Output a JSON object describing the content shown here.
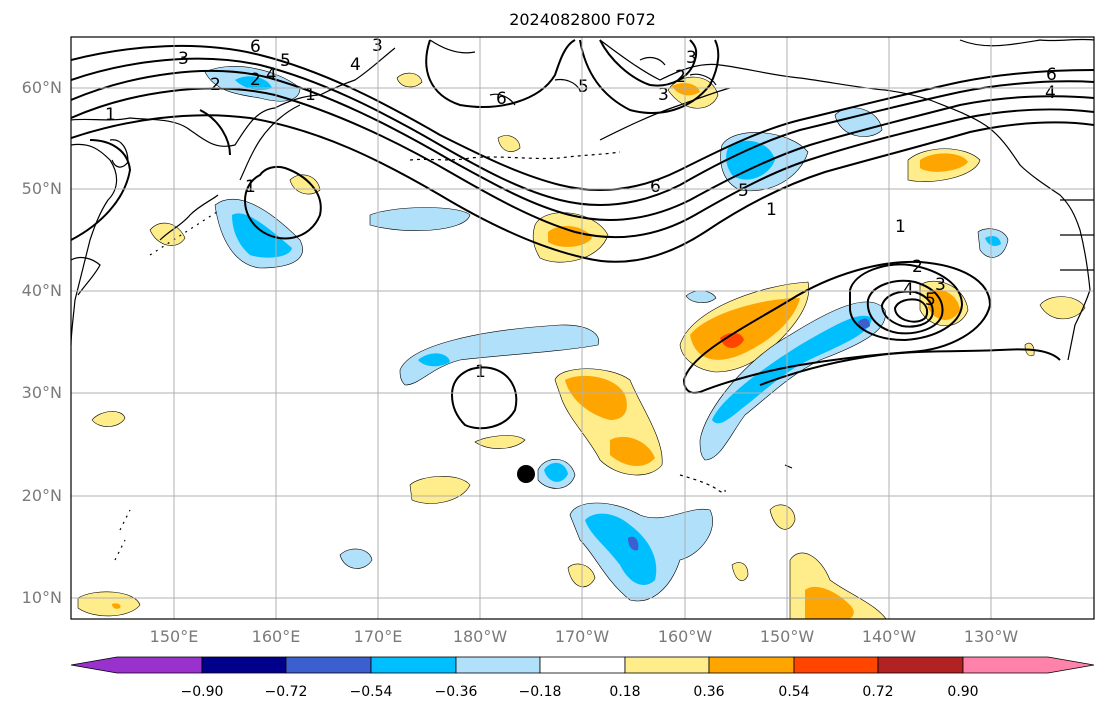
{
  "title": "2024082800 F072",
  "map": {
    "lat_labels": [
      "60°N",
      "50°N",
      "40°N",
      "30°N",
      "20°N",
      "10°N"
    ],
    "lon_labels": [
      "150°E",
      "160°E",
      "170°E",
      "180°W",
      "170°W",
      "160°W",
      "150°W",
      "140°W",
      "130°W"
    ],
    "contour_labels": [
      "3",
      "6",
      "5",
      "4",
      "3",
      "2",
      "1",
      "1",
      "6",
      "5",
      "3",
      "2",
      "3",
      "6",
      "5",
      "1",
      "4",
      "6",
      "1",
      "1",
      "2",
      "4",
      "3",
      "5",
      "1",
      "4",
      "2"
    ],
    "gridline_color": "#b0b0b0",
    "coast_color": "#000000",
    "contour_color": "#000000"
  },
  "colorbar": {
    "ticks": [
      "−0.90",
      "−0.72",
      "−0.54",
      "−0.36",
      "−0.18",
      "0.18",
      "0.36",
      "0.54",
      "0.72",
      "0.90"
    ],
    "colors": [
      "#9932cc",
      "#00008b",
      "#3b5fcf",
      "#00bfff",
      "#b0e0fa",
      "#ffffff",
      "#ffec8b",
      "#ffa500",
      "#ff4500",
      "#b22222",
      "#ff82ab"
    ]
  },
  "marker": {
    "label": "",
    "color": "#000000"
  }
}
